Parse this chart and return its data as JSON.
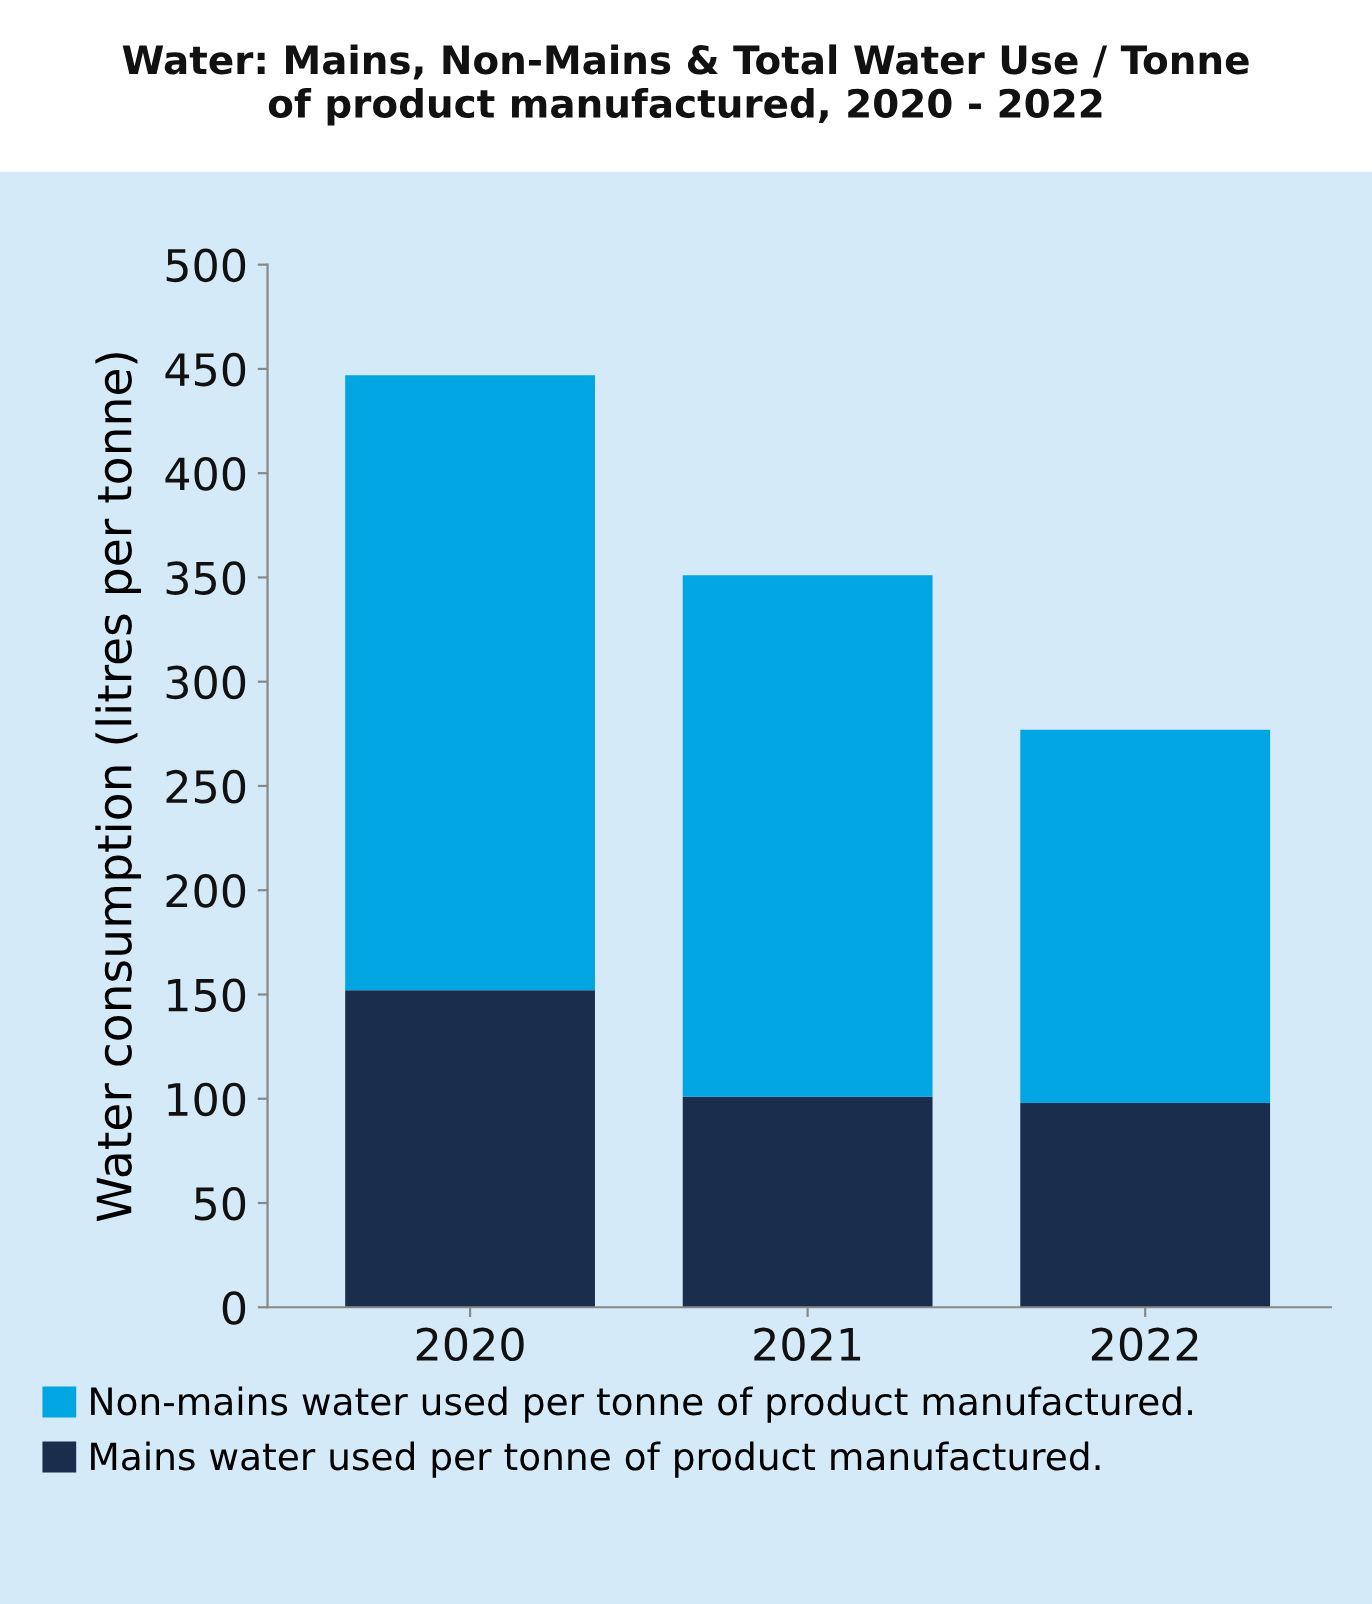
{
  "chart_data": {
    "type": "bar",
    "title": "Water: Mains, Non-Mains & Total Water Use / Tonne\nof product manufactured, 2020 - 2022",
    "ylabel": "Water consumption (litres per tonne)",
    "categories": [
      "2020",
      "2021",
      "2022"
    ],
    "stacked": true,
    "series": [
      {
        "name": "Mains water used per tonne of product manufactured.",
        "color": "#1b2d4d",
        "values": [
          152,
          101,
          98
        ]
      },
      {
        "name": "Non-mains water used per tonne of product manufactured.",
        "color": "#00a5e2",
        "values": [
          295,
          250,
          179
        ]
      }
    ],
    "ylim": [
      0,
      500
    ],
    "yticks": [
      0,
      50,
      100,
      150,
      200,
      250,
      300,
      350,
      400,
      450,
      500
    ],
    "grid": false,
    "legend": "bottom"
  }
}
